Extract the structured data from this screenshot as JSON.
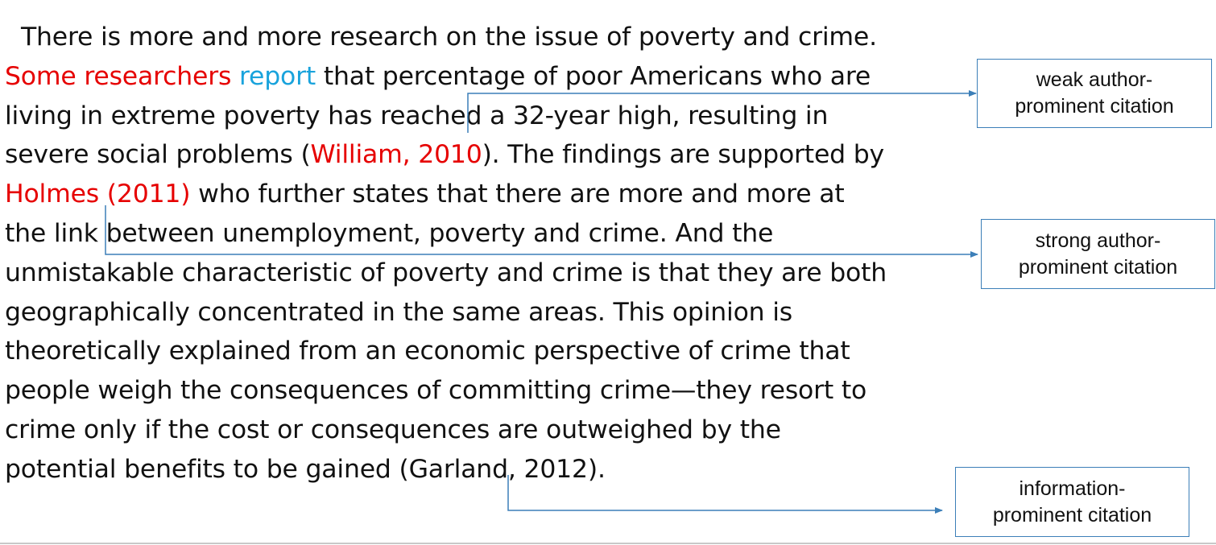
{
  "passage": {
    "line1": "There is more and more research on the issue of poverty and crime.",
    "line2": {
      "cite_author": "Some researchers",
      "cite_verb": "report",
      "rest": " that percentage of poor Americans who are"
    },
    "line3": "living in extreme poverty has reached a 32-year high, resulting in",
    "line4": {
      "before": "severe social problems (",
      "cite": "William, 2010",
      "after": "). The findings are supported by"
    },
    "line5": {
      "cite": "Holmes (2011)",
      "rest": " who further states that there are more and more at"
    },
    "line6": "the link between unemployment, poverty and crime. And the",
    "line7": "unmistakable characteristic of poverty and crime is that they are both",
    "line8": "geographically concentrated in the same areas. This opinion is",
    "line9": "theoretically explained from an economic perspective of crime that",
    "line10": "people weigh the consequences of committing crime—they resort to",
    "line11": "crime only if the cost or consequences are outweighed by the",
    "line12": "potential benefits to be gained (Garland, 2012)."
  },
  "labels": {
    "weak": {
      "line1": "weak author-",
      "line2": "prominent citation"
    },
    "strong": {
      "line1": "strong author-",
      "line2": "prominent citation"
    },
    "information": {
      "line1": "information-",
      "line2": "prominent citation"
    }
  },
  "colors": {
    "citation_red": "#e60000",
    "reporting_verb_blue": "#19a3dc",
    "connector_blue": "#3c7fb8"
  }
}
